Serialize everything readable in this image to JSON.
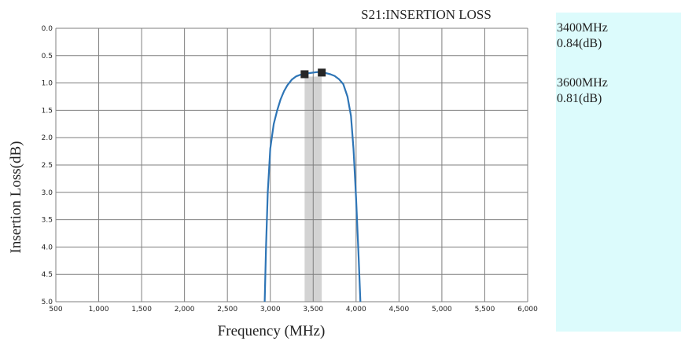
{
  "chart_data": {
    "type": "line",
    "title": "S21:INSERTION LOSS",
    "xlabel": "Frequency (MHz)",
    "ylabel": "Insertion Loss(dB)",
    "xlim": [
      500,
      6000
    ],
    "ylim": [
      0,
      5
    ],
    "y_inverted": true,
    "grid": true,
    "x_ticks": [
      "500",
      "1,000",
      "1,500",
      "2,000",
      "2,500",
      "3,000",
      "3,500",
      "4,000",
      "4,500",
      "5,000",
      "5,500",
      "6,000"
    ],
    "y_ticks": [
      "0.0",
      "0.5",
      "1.0",
      "1.5",
      "2.0",
      "2.5",
      "3.0",
      "3.5",
      "4.0",
      "4.5",
      "5.0"
    ],
    "highlight_band": [
      3400,
      3600
    ],
    "series": [
      {
        "color": "#2e75b6",
        "x": [
          2935,
          2950,
          2970,
          3000,
          3040,
          3080,
          3120,
          3160,
          3200,
          3250,
          3300,
          3350,
          3400,
          3450,
          3500,
          3550,
          3600,
          3650,
          3700,
          3750,
          3800,
          3850,
          3900,
          3940,
          3970,
          4000,
          4030,
          4050
        ],
        "y": [
          5.0,
          4.0,
          3.0,
          2.2,
          1.75,
          1.5,
          1.3,
          1.15,
          1.04,
          0.94,
          0.88,
          0.85,
          0.84,
          0.82,
          0.81,
          0.8,
          0.81,
          0.82,
          0.84,
          0.87,
          0.93,
          1.02,
          1.25,
          1.6,
          2.2,
          3.1,
          4.2,
          5.0
        ]
      }
    ],
    "markers": [
      {
        "x": 3400,
        "y": 0.84
      },
      {
        "x": 3600,
        "y": 0.81
      }
    ]
  },
  "marker_panel": {
    "m1_freq": "3400MHz",
    "m1_value": "0.84(dB)",
    "m2_freq": "3600MHz",
    "m2_value": "0.81(dB)"
  },
  "colors": {
    "band": "#d3d3d3",
    "panel": "#dcfbfc",
    "grid": "#7f7f7f"
  }
}
